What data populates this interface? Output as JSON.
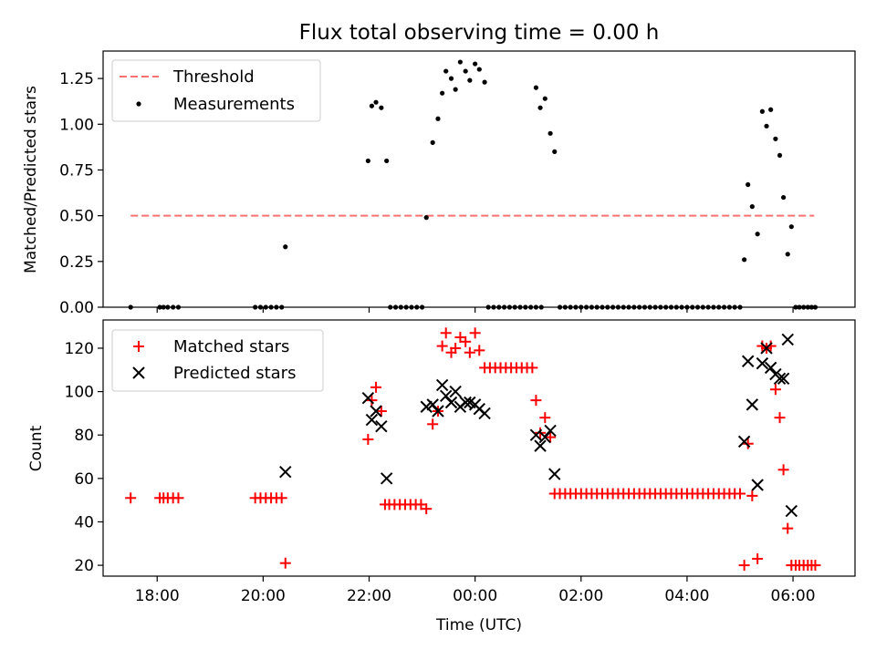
{
  "title": "Flux total observing time = 0.00 h",
  "chart_data": [
    {
      "type": "scatter",
      "panel": "top",
      "ylabel": "Matched/Predicted stars",
      "xlabel": "",
      "ylim": [
        0,
        1.4
      ],
      "yticks": [
        0,
        0.25,
        0.5,
        0.75,
        1.0,
        1.25
      ],
      "ytick_labels": [
        "0.00",
        "0.25",
        "0.50",
        "0.75",
        "1.00",
        "1.25"
      ],
      "xlim_hours": [
        16.98,
        31.17
      ],
      "xticks_hours": [
        18,
        20,
        22,
        24,
        26,
        28,
        30
      ],
      "legend_position": "upper left",
      "threshold": {
        "name": "Threshold",
        "value": 0.5,
        "x_range_hours": [
          17.5,
          30.4
        ],
        "color": "#ff7070",
        "style": "dashed"
      },
      "series": [
        {
          "name": "Measurements",
          "color": "#000000",
          "marker": "dot",
          "points": [
            [
              17.5,
              0
            ],
            [
              18.05,
              0
            ],
            [
              18.12,
              0
            ],
            [
              18.2,
              0
            ],
            [
              18.3,
              0
            ],
            [
              18.4,
              0
            ],
            [
              19.85,
              0
            ],
            [
              19.95,
              0
            ],
            [
              20.05,
              0
            ],
            [
              20.15,
              0
            ],
            [
              20.25,
              0
            ],
            [
              20.35,
              0
            ],
            [
              20.42,
              0.33
            ],
            [
              21.98,
              0.8
            ],
            [
              22.05,
              1.1
            ],
            [
              22.13,
              1.12
            ],
            [
              22.23,
              1.09
            ],
            [
              22.33,
              0.8
            ],
            [
              22.4,
              0
            ],
            [
              22.5,
              0
            ],
            [
              22.6,
              0
            ],
            [
              22.7,
              0
            ],
            [
              22.8,
              0
            ],
            [
              22.9,
              0
            ],
            [
              23.0,
              0
            ],
            [
              23.08,
              0.49
            ],
            [
              23.2,
              0.9
            ],
            [
              23.3,
              1.03
            ],
            [
              23.38,
              1.17
            ],
            [
              23.45,
              1.29
            ],
            [
              23.55,
              1.25
            ],
            [
              23.63,
              1.19
            ],
            [
              23.72,
              1.34
            ],
            [
              23.82,
              1.29
            ],
            [
              23.9,
              1.24
            ],
            [
              24.0,
              1.33
            ],
            [
              24.08,
              1.3
            ],
            [
              24.18,
              1.23
            ],
            [
              24.25,
              0
            ],
            [
              24.35,
              0
            ],
            [
              24.45,
              0
            ],
            [
              24.55,
              0
            ],
            [
              24.65,
              0
            ],
            [
              24.75,
              0
            ],
            [
              24.85,
              0
            ],
            [
              24.95,
              0
            ],
            [
              25.05,
              0
            ],
            [
              25.15,
              0
            ],
            [
              25.25,
              0
            ],
            [
              25.15,
              1.2
            ],
            [
              25.23,
              1.09
            ],
            [
              25.32,
              1.14
            ],
            [
              25.42,
              0.95
            ],
            [
              25.5,
              0.85
            ],
            [
              25.6,
              0
            ],
            [
              25.7,
              0
            ],
            [
              25.8,
              0
            ],
            [
              25.9,
              0
            ],
            [
              26.0,
              0
            ],
            [
              26.1,
              0
            ],
            [
              26.2,
              0
            ],
            [
              26.3,
              0
            ],
            [
              26.4,
              0
            ],
            [
              26.5,
              0
            ],
            [
              26.6,
              0
            ],
            [
              26.7,
              0
            ],
            [
              26.8,
              0
            ],
            [
              26.9,
              0
            ],
            [
              27.0,
              0
            ],
            [
              27.1,
              0
            ],
            [
              27.2,
              0
            ],
            [
              27.3,
              0
            ],
            [
              27.4,
              0
            ],
            [
              27.5,
              0
            ],
            [
              27.6,
              0
            ],
            [
              27.7,
              0
            ],
            [
              27.8,
              0
            ],
            [
              27.9,
              0
            ],
            [
              28.0,
              0
            ],
            [
              28.1,
              0
            ],
            [
              28.2,
              0
            ],
            [
              28.3,
              0
            ],
            [
              28.4,
              0
            ],
            [
              28.5,
              0
            ],
            [
              28.6,
              0
            ],
            [
              28.7,
              0
            ],
            [
              28.8,
              0
            ],
            [
              28.9,
              0
            ],
            [
              29.0,
              0
            ],
            [
              29.08,
              0.26
            ],
            [
              29.15,
              0.67
            ],
            [
              29.23,
              0.55
            ],
            [
              29.33,
              0.4
            ],
            [
              29.42,
              1.07
            ],
            [
              29.5,
              0.99
            ],
            [
              29.58,
              1.08
            ],
            [
              29.67,
              0.92
            ],
            [
              29.75,
              0.83
            ],
            [
              29.82,
              0.6
            ],
            [
              29.9,
              0.29
            ],
            [
              29.97,
              0.44
            ],
            [
              30.05,
              0
            ],
            [
              30.12,
              0
            ],
            [
              30.2,
              0
            ],
            [
              30.28,
              0
            ],
            [
              30.35,
              0
            ],
            [
              30.42,
              0
            ]
          ]
        }
      ]
    },
    {
      "type": "scatter",
      "panel": "bottom",
      "ylabel": "Count",
      "xlabel": "Time (UTC)",
      "ylim": [
        15,
        133
      ],
      "yticks": [
        20,
        40,
        60,
        80,
        100,
        120
      ],
      "ytick_labels": [
        "20",
        "40",
        "60",
        "80",
        "100",
        "120"
      ],
      "xlim_hours": [
        16.98,
        31.17
      ],
      "xticks_hours": [
        18,
        20,
        22,
        24,
        26,
        28,
        30
      ],
      "xtick_labels": [
        "18:00",
        "20:00",
        "22:00",
        "00:00",
        "02:00",
        "04:00",
        "06:00"
      ],
      "legend_position": "upper left",
      "series": [
        {
          "name": "Matched stars",
          "color": "#ff0000",
          "marker": "plus",
          "points": [
            [
              17.5,
              51
            ],
            [
              18.05,
              51
            ],
            [
              18.12,
              51
            ],
            [
              18.2,
              51
            ],
            [
              18.3,
              51
            ],
            [
              18.4,
              51
            ],
            [
              19.85,
              51
            ],
            [
              19.95,
              51
            ],
            [
              20.05,
              51
            ],
            [
              20.15,
              51
            ],
            [
              20.25,
              51
            ],
            [
              20.35,
              51
            ],
            [
              20.42,
              21
            ],
            [
              21.98,
              78
            ],
            [
              22.05,
              96
            ],
            [
              22.13,
              102
            ],
            [
              22.23,
              91
            ],
            [
              22.3,
              48
            ],
            [
              22.38,
              48
            ],
            [
              22.48,
              48
            ],
            [
              22.58,
              48
            ],
            [
              22.68,
              48
            ],
            [
              22.78,
              48
            ],
            [
              22.88,
              48
            ],
            [
              22.98,
              48
            ],
            [
              23.08,
              46
            ],
            [
              23.2,
              85
            ],
            [
              23.3,
              91
            ],
            [
              23.38,
              121
            ],
            [
              23.45,
              127
            ],
            [
              23.55,
              118
            ],
            [
              23.63,
              120
            ],
            [
              23.72,
              125
            ],
            [
              23.82,
              123
            ],
            [
              23.9,
              118
            ],
            [
              24.0,
              127
            ],
            [
              24.08,
              119
            ],
            [
              24.18,
              111
            ],
            [
              24.28,
              111
            ],
            [
              24.38,
              111
            ],
            [
              24.48,
              111
            ],
            [
              24.58,
              111
            ],
            [
              24.68,
              111
            ],
            [
              24.78,
              111
            ],
            [
              24.88,
              111
            ],
            [
              24.98,
              111
            ],
            [
              25.08,
              111
            ],
            [
              25.15,
              96
            ],
            [
              25.23,
              81
            ],
            [
              25.32,
              88
            ],
            [
              25.42,
              79
            ],
            [
              25.5,
              53
            ],
            [
              25.6,
              53
            ],
            [
              25.7,
              53
            ],
            [
              25.8,
              53
            ],
            [
              25.9,
              53
            ],
            [
              26.0,
              53
            ],
            [
              26.1,
              53
            ],
            [
              26.2,
              53
            ],
            [
              26.3,
              53
            ],
            [
              26.4,
              53
            ],
            [
              26.5,
              53
            ],
            [
              26.6,
              53
            ],
            [
              26.7,
              53
            ],
            [
              26.8,
              53
            ],
            [
              26.9,
              53
            ],
            [
              27.0,
              53
            ],
            [
              27.1,
              53
            ],
            [
              27.2,
              53
            ],
            [
              27.3,
              53
            ],
            [
              27.4,
              53
            ],
            [
              27.5,
              53
            ],
            [
              27.6,
              53
            ],
            [
              27.7,
              53
            ],
            [
              27.8,
              53
            ],
            [
              27.9,
              53
            ],
            [
              28.0,
              53
            ],
            [
              28.1,
              53
            ],
            [
              28.2,
              53
            ],
            [
              28.3,
              53
            ],
            [
              28.4,
              53
            ],
            [
              28.5,
              53
            ],
            [
              28.6,
              53
            ],
            [
              28.7,
              53
            ],
            [
              28.8,
              53
            ],
            [
              28.9,
              53
            ],
            [
              29.0,
              53
            ],
            [
              29.08,
              20
            ],
            [
              29.15,
              76
            ],
            [
              29.23,
              52
            ],
            [
              29.33,
              23
            ],
            [
              29.42,
              121
            ],
            [
              29.5,
              120
            ],
            [
              29.58,
              121
            ],
            [
              29.67,
              101
            ],
            [
              29.75,
              88
            ],
            [
              29.82,
              64
            ],
            [
              29.9,
              37
            ],
            [
              29.97,
              20
            ],
            [
              30.05,
              20
            ],
            [
              30.12,
              20
            ],
            [
              30.2,
              20
            ],
            [
              30.28,
              20
            ],
            [
              30.35,
              20
            ],
            [
              30.42,
              20
            ]
          ]
        },
        {
          "name": "Predicted stars",
          "color": "#000000",
          "marker": "x",
          "points": [
            [
              20.42,
              63
            ],
            [
              21.98,
              97
            ],
            [
              22.05,
              87
            ],
            [
              22.13,
              91
            ],
            [
              22.23,
              84
            ],
            [
              22.33,
              60
            ],
            [
              23.08,
              93
            ],
            [
              23.2,
              94
            ],
            [
              23.3,
              91
            ],
            [
              23.38,
              103
            ],
            [
              23.45,
              98
            ],
            [
              23.55,
              95
            ],
            [
              23.63,
              100
            ],
            [
              23.72,
              93
            ],
            [
              23.82,
              95
            ],
            [
              23.9,
              95
            ],
            [
              24.0,
              94
            ],
            [
              24.08,
              92
            ],
            [
              24.18,
              90
            ],
            [
              25.15,
              80
            ],
            [
              25.23,
              75
            ],
            [
              25.32,
              79
            ],
            [
              25.42,
              82
            ],
            [
              25.5,
              62
            ],
            [
              29.08,
              77
            ],
            [
              29.15,
              114
            ],
            [
              29.23,
              94
            ],
            [
              29.33,
              57
            ],
            [
              29.42,
              113
            ],
            [
              29.5,
              120
            ],
            [
              29.58,
              111
            ],
            [
              29.67,
              108
            ],
            [
              29.75,
              106
            ],
            [
              29.82,
              106
            ],
            [
              29.9,
              124
            ],
            [
              29.97,
              45
            ]
          ]
        }
      ]
    }
  ]
}
